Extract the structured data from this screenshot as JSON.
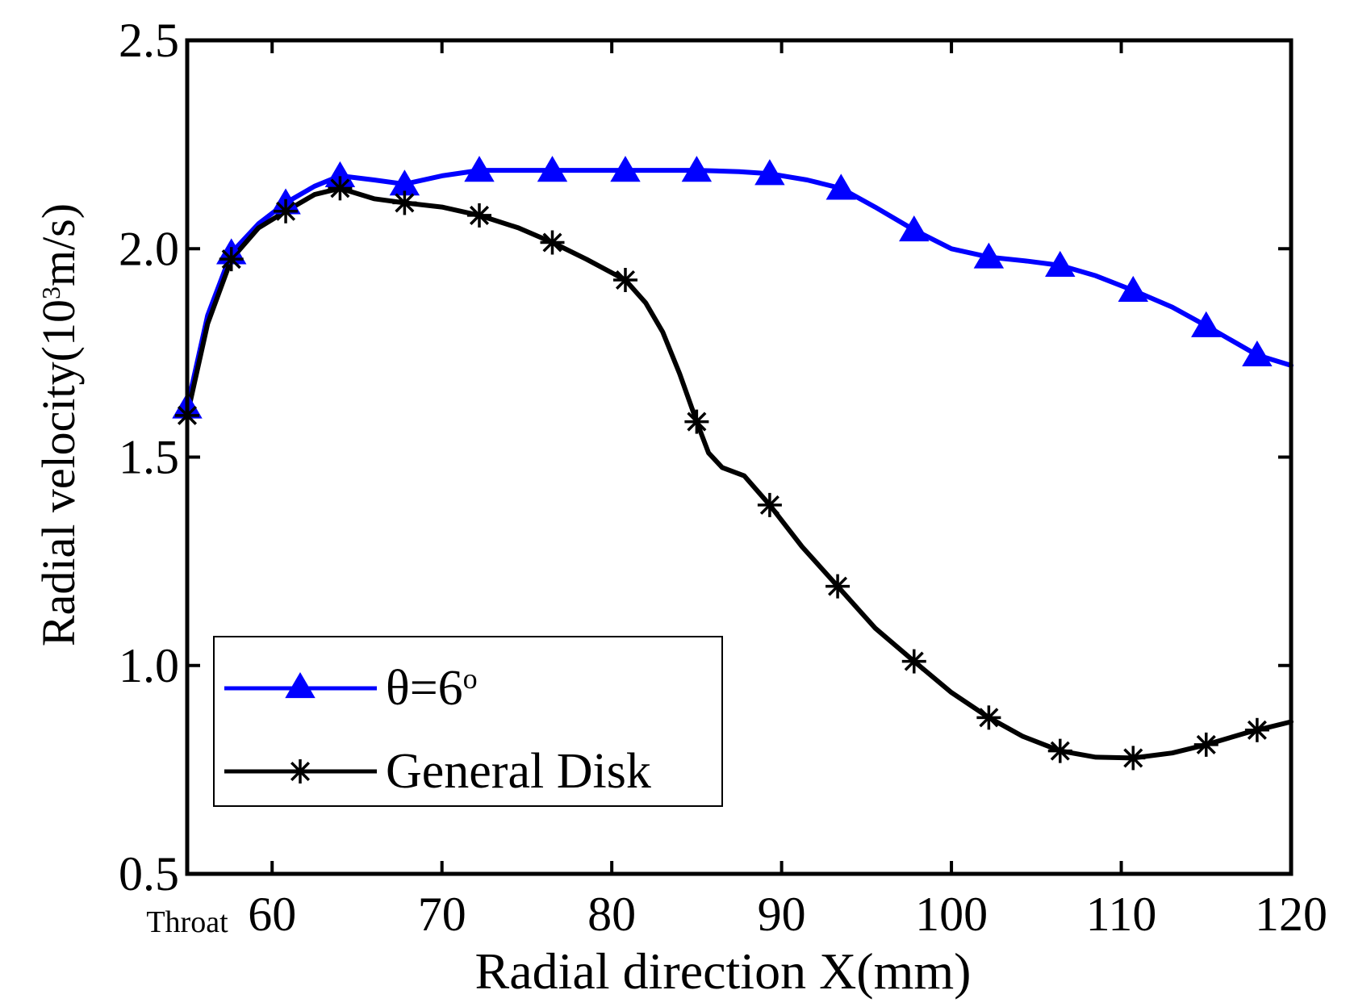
{
  "chart_data": {
    "type": "line",
    "title": "",
    "xlabel": "Radial direction X(mm)",
    "ylabel": {
      "prefix": "Radial velocity(10",
      "superscript": "3",
      "suffix": "m/s)"
    },
    "xlim": [
      55,
      120
    ],
    "ylim": [
      0.5,
      2.5
    ],
    "x_ticks": [
      60,
      70,
      80,
      90,
      100,
      110,
      120
    ],
    "y_ticks": [
      0.5,
      1.0,
      1.5,
      2.0,
      2.5
    ],
    "x_tick_labels": [
      "60",
      "70",
      "80",
      "90",
      "100",
      "110",
      "120"
    ],
    "y_tick_labels": [
      "0.5",
      "1.0",
      "1.5",
      "2.0",
      "2.5"
    ],
    "x_start_annotation": "Throat",
    "grid": false,
    "legend_position": "bottom-left",
    "series": [
      {
        "name": "θ=6°",
        "legend_main": "θ=6",
        "legend_superscript": "o",
        "color": "#0000ff",
        "marker": "triangle",
        "curve": [
          [
            55.0,
            1.62
          ],
          [
            56.2,
            1.84
          ],
          [
            57.6,
            1.99
          ],
          [
            59.2,
            2.06
          ],
          [
            60.8,
            2.11
          ],
          [
            62.5,
            2.15
          ],
          [
            64.0,
            2.175
          ],
          [
            66.0,
            2.165
          ],
          [
            67.8,
            2.155
          ],
          [
            70.0,
            2.175
          ],
          [
            72.2,
            2.188
          ],
          [
            76.5,
            2.188
          ],
          [
            80.8,
            2.188
          ],
          [
            85.0,
            2.188
          ],
          [
            87.5,
            2.185
          ],
          [
            89.3,
            2.18
          ],
          [
            91.5,
            2.165
          ],
          [
            93.5,
            2.145
          ],
          [
            95.5,
            2.1
          ],
          [
            97.8,
            2.045
          ],
          [
            100.0,
            2.0
          ],
          [
            102.2,
            1.98
          ],
          [
            104.5,
            1.97
          ],
          [
            106.4,
            1.96
          ],
          [
            108.5,
            1.935
          ],
          [
            110.7,
            1.9
          ],
          [
            113.0,
            1.86
          ],
          [
            115.0,
            1.815
          ],
          [
            116.5,
            1.78
          ],
          [
            118.0,
            1.745
          ],
          [
            120.0,
            1.72
          ]
        ],
        "markers": [
          [
            55.0,
            1.62
          ],
          [
            57.6,
            1.99
          ],
          [
            60.8,
            2.11
          ],
          [
            64.0,
            2.175
          ],
          [
            67.8,
            2.155
          ],
          [
            72.2,
            2.188
          ],
          [
            76.5,
            2.188
          ],
          [
            80.8,
            2.188
          ],
          [
            85.0,
            2.188
          ],
          [
            89.3,
            2.18
          ],
          [
            93.5,
            2.145
          ],
          [
            97.8,
            2.045
          ],
          [
            102.2,
            1.98
          ],
          [
            106.4,
            1.96
          ],
          [
            110.7,
            1.9
          ],
          [
            115.0,
            1.815
          ],
          [
            118.0,
            1.745
          ]
        ]
      },
      {
        "name": "General Disk",
        "color": "#000000",
        "marker": "star",
        "curve": [
          [
            55.0,
            1.6
          ],
          [
            56.2,
            1.82
          ],
          [
            57.6,
            1.975
          ],
          [
            59.2,
            2.05
          ],
          [
            60.8,
            2.09
          ],
          [
            62.5,
            2.13
          ],
          [
            64.0,
            2.145
          ],
          [
            66.0,
            2.12
          ],
          [
            67.8,
            2.11
          ],
          [
            70.0,
            2.1
          ],
          [
            72.2,
            2.08
          ],
          [
            74.5,
            2.05
          ],
          [
            76.5,
            2.015
          ],
          [
            78.5,
            1.975
          ],
          [
            80.8,
            1.925
          ],
          [
            82.0,
            1.87
          ],
          [
            83.0,
            1.8
          ],
          [
            84.0,
            1.7
          ],
          [
            85.0,
            1.585
          ],
          [
            85.7,
            1.51
          ],
          [
            86.5,
            1.475
          ],
          [
            87.8,
            1.455
          ],
          [
            89.3,
            1.385
          ],
          [
            91.2,
            1.285
          ],
          [
            93.3,
            1.19
          ],
          [
            95.5,
            1.09
          ],
          [
            97.8,
            1.01
          ],
          [
            100.0,
            0.935
          ],
          [
            102.2,
            0.875
          ],
          [
            104.2,
            0.83
          ],
          [
            106.4,
            0.795
          ],
          [
            108.5,
            0.78
          ],
          [
            110.7,
            0.778
          ],
          [
            113.0,
            0.79
          ],
          [
            115.0,
            0.81
          ],
          [
            117.5,
            0.84
          ],
          [
            120.0,
            0.865
          ]
        ],
        "markers": [
          [
            55.0,
            1.6
          ],
          [
            57.6,
            1.975
          ],
          [
            60.8,
            2.09
          ],
          [
            64.0,
            2.145
          ],
          [
            67.8,
            2.11
          ],
          [
            72.2,
            2.08
          ],
          [
            76.5,
            2.015
          ],
          [
            80.8,
            1.925
          ],
          [
            85.0,
            1.585
          ],
          [
            89.3,
            1.385
          ],
          [
            93.3,
            1.19
          ],
          [
            97.8,
            1.01
          ],
          [
            102.2,
            0.875
          ],
          [
            106.4,
            0.795
          ],
          [
            110.7,
            0.778
          ],
          [
            115.0,
            0.81
          ],
          [
            118.0,
            0.845
          ]
        ]
      }
    ]
  }
}
